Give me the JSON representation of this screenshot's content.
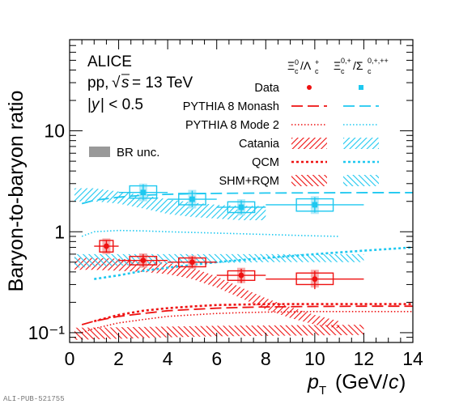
{
  "chart_data": {
    "type": "scatter",
    "experiment": "ALICE",
    "system": "pp, √s = 13 TeV",
    "rapidity_cut": "|y| < 0.5",
    "xlabel": "pT (GeV/c)",
    "ylabel": "Baryon-to-baryon ratio",
    "xlim": [
      0,
      14
    ],
    "ylim": [
      0.08,
      80
    ],
    "y_scale": "log",
    "x_ticks": [
      0,
      2,
      4,
      6,
      8,
      10,
      12,
      14
    ],
    "y_tick_labels": [
      {
        "value": 0.1,
        "label": "10⁻¹"
      },
      {
        "value": 1,
        "label": "1"
      },
      {
        "value": 10,
        "label": "10"
      }
    ],
    "watermark": "ALI-PUB-521755",
    "legend": {
      "columns": [
        "Ξ⁰c/Λ⁺c",
        "Ξ⁰,⁺c/Σ⁰,⁺,⁺⁺c"
      ],
      "rows": [
        "Data",
        "PYTHIA 8 Monash",
        "PYTHIA 8 Mode 2",
        "Catania",
        "QCM",
        "SHM+RQM"
      ],
      "br_label": "BR unc."
    },
    "colors": {
      "red": "#ee1111",
      "cyan": "#1ec8f0",
      "br_gray": "#999999"
    },
    "series": [
      {
        "name": "Ξ⁰c/Λ⁺c",
        "color": "#ee1111",
        "x": [
          1.5,
          3.0,
          5.0,
          7.0,
          10.0
        ],
        "x_err": [
          0.5,
          1.0,
          1.0,
          1.0,
          2.0
        ],
        "y": [
          0.72,
          0.52,
          0.5,
          0.37,
          0.34
        ],
        "stat_err_low": [
          0.62,
          0.45,
          0.44,
          0.31,
          0.27
        ],
        "stat_err_high": [
          0.83,
          0.6,
          0.57,
          0.43,
          0.41
        ],
        "syst_low": [
          0.63,
          0.47,
          0.45,
          0.33,
          0.3
        ],
        "syst_high": [
          0.82,
          0.57,
          0.55,
          0.41,
          0.39
        ],
        "br_low": [
          0.6,
          0.44,
          0.43,
          0.31,
          0.28
        ],
        "br_high": [
          0.86,
          0.61,
          0.58,
          0.44,
          0.42
        ]
      },
      {
        "name": "Ξ⁰,⁺c/Σ⁰,⁺,⁺⁺c",
        "color": "#1ec8f0",
        "x": [
          3.0,
          5.0,
          7.0,
          10.0
        ],
        "x_err": [
          1.0,
          1.0,
          1.0,
          2.0
        ],
        "y": [
          2.45,
          2.1,
          1.75,
          1.85
        ],
        "stat_err_low": [
          2.05,
          1.75,
          1.5,
          1.55
        ],
        "stat_err_high": [
          2.95,
          2.55,
          2.05,
          2.2
        ],
        "syst_low": [
          2.15,
          1.85,
          1.55,
          1.6
        ],
        "syst_high": [
          2.85,
          2.4,
          1.98,
          2.12
        ],
        "br_low": [
          2.0,
          1.7,
          1.45,
          1.5
        ],
        "br_high": [
          3.0,
          2.6,
          2.1,
          2.25
        ]
      }
    ],
    "models": [
      {
        "name": "PYTHIA 8 Monash",
        "series": "Ξ⁰c/Λ⁺c",
        "style": "dash",
        "color": "#ee1111",
        "x": [
          0.5,
          1,
          2,
          3,
          4,
          5,
          6,
          7,
          8,
          10,
          12,
          14
        ],
        "y": [
          0.12,
          0.13,
          0.145,
          0.155,
          0.165,
          0.17,
          0.175,
          0.178,
          0.18,
          0.182,
          0.183,
          0.183
        ]
      },
      {
        "name": "PYTHIA 8 Monash",
        "series": "Ξ⁰,⁺c/Σ⁰,⁺,⁺⁺c",
        "style": "dash",
        "color": "#1ec8f0",
        "x": [
          0.5,
          1,
          2,
          3,
          4,
          5,
          6,
          8,
          10,
          12,
          14
        ],
        "y": [
          1.9,
          2.05,
          2.2,
          2.3,
          2.35,
          2.38,
          2.4,
          2.42,
          2.43,
          2.44,
          2.44
        ]
      },
      {
        "name": "PYTHIA 8 Mode 2",
        "series": "Ξ⁰c/Λ⁺c",
        "style": "dot",
        "color": "#ee1111",
        "x": [
          0.5,
          1,
          2,
          3,
          4,
          5,
          6,
          7,
          8,
          10,
          12,
          14
        ],
        "y": [
          0.1,
          0.11,
          0.125,
          0.135,
          0.145,
          0.15,
          0.155,
          0.158,
          0.16,
          0.162,
          0.162,
          0.162
        ]
      },
      {
        "name": "PYTHIA 8 Mode 2",
        "series": "Ξ⁰,⁺c/Σ⁰,⁺,⁺⁺c",
        "style": "dot",
        "color": "#1ec8f0",
        "x": [
          0.5,
          1,
          2,
          3,
          4,
          6,
          8,
          10,
          11
        ],
        "y": [
          0.9,
          1.0,
          1.03,
          1.02,
          1.0,
          0.97,
          0.94,
          0.91,
          0.9
        ]
      },
      {
        "name": "QCM",
        "series": "Ξ⁰c/Λ⁺c",
        "style": "qcm",
        "color": "#ee1111",
        "x": [
          1,
          2,
          3,
          4,
          5,
          6,
          7,
          8,
          9,
          10,
          12,
          14
        ],
        "y": [
          0.13,
          0.15,
          0.165,
          0.175,
          0.182,
          0.188,
          0.19,
          0.192,
          0.192,
          0.192,
          0.192,
          0.192
        ]
      },
      {
        "name": "QCM",
        "series": "Ξ⁰,⁺c/Σ⁰,⁺,⁺⁺c",
        "style": "qcm",
        "color": "#1ec8f0",
        "x": [
          1,
          2,
          3,
          4,
          5,
          6,
          8,
          10,
          12,
          14
        ],
        "y": [
          0.34,
          0.37,
          0.41,
          0.44,
          0.47,
          0.5,
          0.55,
          0.6,
          0.65,
          0.7
        ]
      }
    ],
    "bands": [
      {
        "name": "Catania",
        "series": "Ξ⁰c/Λ⁺c",
        "color": "#ee1111",
        "x": [
          0.2,
          1,
          2,
          3,
          4,
          5,
          6,
          7,
          8,
          9,
          10,
          11
        ],
        "low": [
          0.42,
          0.42,
          0.41,
          0.4,
          0.38,
          0.34,
          0.28,
          0.22,
          0.17,
          0.14,
          0.12,
          0.11
        ],
        "high": [
          0.55,
          0.55,
          0.54,
          0.52,
          0.49,
          0.44,
          0.36,
          0.28,
          0.22,
          0.18,
          0.15,
          0.13
        ]
      },
      {
        "name": "Catania",
        "series": "Ξ⁰,⁺c/Σ⁰,⁺,⁺⁺c",
        "color": "#1ec8f0",
        "x": [
          0.2,
          1,
          2,
          3,
          4,
          5,
          6,
          7,
          8
        ],
        "low": [
          2.0,
          2.0,
          1.9,
          1.7,
          1.5,
          1.4,
          1.35,
          1.3,
          1.3
        ],
        "high": [
          2.7,
          2.7,
          2.5,
          2.3,
          2.1,
          1.95,
          1.85,
          1.8,
          1.8
        ]
      },
      {
        "name": "SHM+RQM",
        "series": "Ξ⁰c/Λ⁺c",
        "color": "#ee1111",
        "x": [
          0.2,
          2,
          4,
          6,
          8,
          10,
          12
        ],
        "low": [
          0.085,
          0.087,
          0.09,
          0.092,
          0.093,
          0.094,
          0.095
        ],
        "high": [
          0.112,
          0.113,
          0.115,
          0.117,
          0.118,
          0.119,
          0.12
        ]
      },
      {
        "name": "SHM+RQM",
        "series": "Ξ⁰,⁺c/Σ⁰,⁺,⁺⁺c",
        "color": "#1ec8f0",
        "x": [
          0.2,
          2,
          4,
          6,
          8,
          10,
          12
        ],
        "low": [
          0.44,
          0.46,
          0.48,
          0.49,
          0.5,
          0.5,
          0.5
        ],
        "high": [
          0.6,
          0.6,
          0.6,
          0.6,
          0.6,
          0.6,
          0.6
        ]
      }
    ]
  }
}
